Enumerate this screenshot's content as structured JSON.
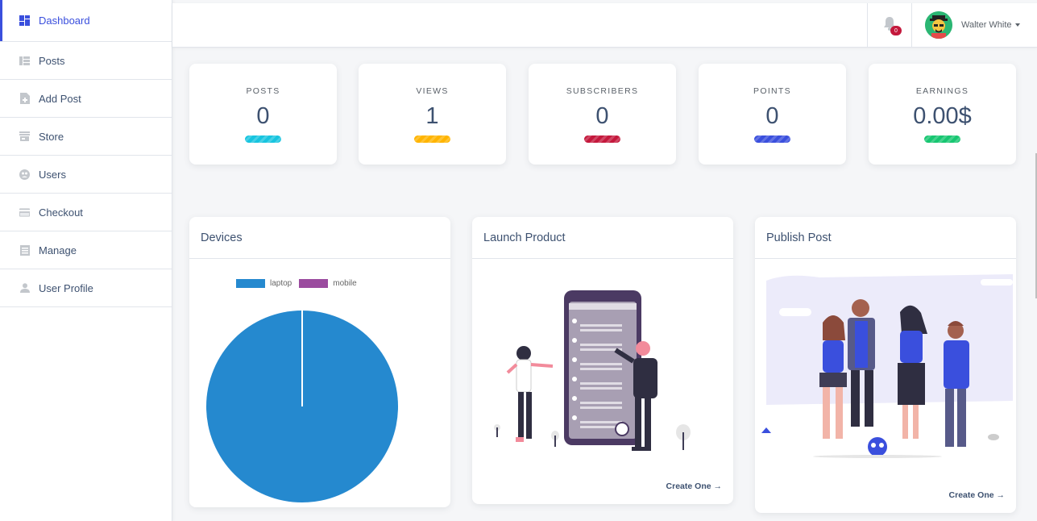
{
  "sidebar": {
    "items": [
      {
        "label": "Dashboard",
        "icon": "dashboard-icon"
      },
      {
        "label": "Posts",
        "icon": "posts-icon"
      },
      {
        "label": "Add Post",
        "icon": "add-post-icon"
      },
      {
        "label": "Store",
        "icon": "store-icon"
      },
      {
        "label": "Users",
        "icon": "users-icon"
      },
      {
        "label": "Checkout",
        "icon": "checkout-icon"
      },
      {
        "label": "Manage",
        "icon": "manage-icon"
      },
      {
        "label": "User Profile",
        "icon": "user-profile-icon"
      }
    ],
    "active_index": 0
  },
  "header": {
    "notifications_count": "0",
    "user_name": "Walter White"
  },
  "stats": [
    {
      "label": "POSTS",
      "value": "0",
      "color": "#17c4df"
    },
    {
      "label": "VIEWS",
      "value": "1",
      "color": "#ffb400"
    },
    {
      "label": "SUBSCRIBERS",
      "value": "0",
      "color": "#c4183c"
    },
    {
      "label": "POINTS",
      "value": "0",
      "color": "#3a4fdd"
    },
    {
      "label": "EARNINGS",
      "value": "0.00$",
      "color": "#17c671"
    }
  ],
  "devices_card": {
    "title": "Devices",
    "chart_data": {
      "type": "pie",
      "categories": [
        "laptop",
        "mobile"
      ],
      "values": [
        1,
        0
      ],
      "colors": [
        "#2589cf",
        "#9b4b9f"
      ],
      "legend_position": "top"
    }
  },
  "launch_card": {
    "title": "Launch Product",
    "link": "Create One →"
  },
  "publish_card": {
    "title": "Publish Post",
    "link": "Create One →"
  }
}
